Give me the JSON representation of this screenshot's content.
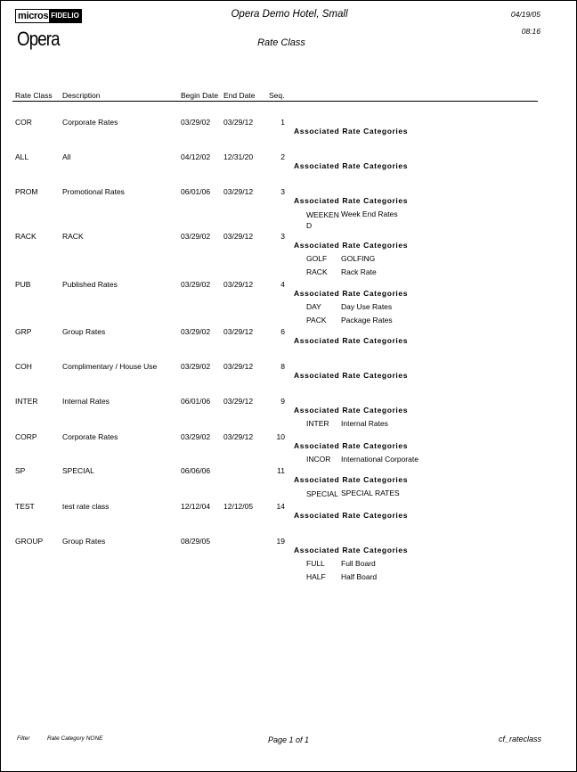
{
  "header": {
    "logo_micros": "micros",
    "logo_fidelio": "FIDELIO",
    "logo_opera": "Opera",
    "hotel": "Opera Demo Hotel, Small",
    "date": "04/19/05",
    "time": "08:16",
    "title": "Rate Class"
  },
  "columns": {
    "rate_class": "Rate Class",
    "description": "Description",
    "begin_date": "Begin Date",
    "end_date": "End Date",
    "seq": "Seq."
  },
  "assoc_label": "Associated Rate Categories",
  "rows": [
    {
      "code": "COR",
      "desc": "Corporate Rates",
      "begin": "03/29/02",
      "end": "03/29/12",
      "seq": "1",
      "cats": []
    },
    {
      "code": "ALL",
      "desc": "All",
      "begin": "04/12/02",
      "end": "12/31/20",
      "seq": "2",
      "cats": []
    },
    {
      "code": "PROM",
      "desc": "Promotional Rates",
      "begin": "06/01/06",
      "end": "03/29/12",
      "seq": "3",
      "cats": [
        {
          "code": "WEEKEND",
          "desc": "Week End Rates"
        }
      ]
    },
    {
      "code": "RACK",
      "desc": "RACK",
      "begin": "03/29/02",
      "end": "03/29/12",
      "seq": "3",
      "cats": [
        {
          "code": "GOLF",
          "desc": "GOLFING"
        },
        {
          "code": "RACK",
          "desc": "Rack Rate"
        }
      ]
    },
    {
      "code": "PUB",
      "desc": "Published Rates",
      "begin": "03/29/02",
      "end": "03/29/12",
      "seq": "4",
      "cats": [
        {
          "code": "DAY",
          "desc": "Day Use Rates"
        },
        {
          "code": "PACK",
          "desc": "Package Rates"
        }
      ]
    },
    {
      "code": "GRP",
      "desc": "Group Rates",
      "begin": "03/29/02",
      "end": "03/29/12",
      "seq": "6",
      "cats": []
    },
    {
      "code": "COH",
      "desc": "Complimentary / House Use",
      "begin": "03/29/02",
      "end": "03/29/12",
      "seq": "8",
      "cats": []
    },
    {
      "code": "INTER",
      "desc": "Internal Rates",
      "begin": "06/01/06",
      "end": "03/29/12",
      "seq": "9",
      "cats": [
        {
          "code": "INTER",
          "desc": "Internal Rates"
        }
      ]
    },
    {
      "code": "CORP",
      "desc": "Corporate Rates",
      "begin": "03/29/02",
      "end": "03/29/12",
      "seq": "10",
      "cats": [
        {
          "code": "INCOR",
          "desc": "International Corporate"
        }
      ]
    },
    {
      "code": "SP",
      "desc": "SPECIAL",
      "begin": "06/06/06",
      "end": "",
      "seq": "11",
      "cats": [
        {
          "code": "SPECIAL",
          "desc": "SPECIAL RATES"
        }
      ]
    },
    {
      "code": "TEST",
      "desc": "test rate class",
      "begin": "12/12/04",
      "end": "12/12/05",
      "seq": "14",
      "cats": []
    },
    {
      "code": "GROUP",
      "desc": "Group Rates",
      "begin": "08/29/05",
      "end": "",
      "seq": "19",
      "cats": [
        {
          "code": "FULL",
          "desc": "Full Board"
        },
        {
          "code": "HALF",
          "desc": "Half Board"
        }
      ]
    }
  ],
  "footer": {
    "filter": "Filter",
    "filter_value": "Rate Category  NONE",
    "page": "Page 1  of 1",
    "report": "cf_rateclass"
  }
}
